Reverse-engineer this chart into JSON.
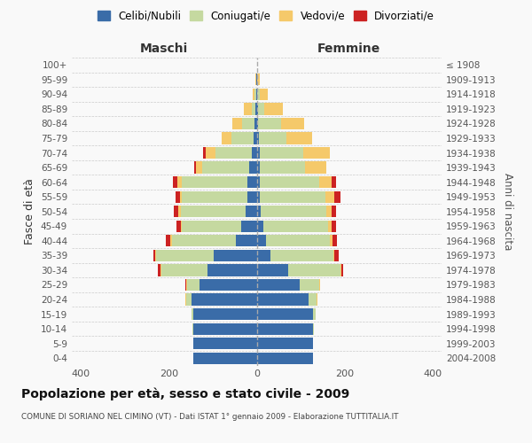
{
  "age_groups": [
    "100+",
    "95-99",
    "90-94",
    "85-89",
    "80-84",
    "75-79",
    "70-74",
    "65-69",
    "60-64",
    "55-59",
    "50-54",
    "45-49",
    "40-44",
    "35-39",
    "30-34",
    "25-29",
    "20-24",
    "15-19",
    "10-14",
    "5-9",
    "0-4"
  ],
  "birth_years": [
    "≤ 1908",
    "1909-1913",
    "1914-1918",
    "1919-1923",
    "1924-1928",
    "1929-1933",
    "1934-1938",
    "1939-1943",
    "1944-1948",
    "1949-1953",
    "1954-1958",
    "1959-1963",
    "1964-1968",
    "1969-1973",
    "1974-1978",
    "1979-1983",
    "1984-1988",
    "1989-1993",
    "1994-1998",
    "1999-2003",
    "2004-2008"
  ],
  "colors": {
    "celibi": "#3a6ca8",
    "coniugati": "#c5d9a0",
    "vedovi": "#f5c96a",
    "divorziati": "#cc2222"
  },
  "maschi": {
    "celibi": [
      0,
      1,
      2,
      3,
      5,
      8,
      12,
      18,
      22,
      22,
      25,
      35,
      48,
      98,
      112,
      130,
      148,
      145,
      145,
      145,
      145
    ],
    "coniugati": [
      0,
      1,
      3,
      8,
      28,
      50,
      82,
      105,
      148,
      148,
      148,
      135,
      145,
      130,
      105,
      28,
      12,
      3,
      2,
      0,
      0
    ],
    "vedovi": [
      0,
      1,
      5,
      18,
      22,
      22,
      22,
      15,
      10,
      5,
      5,
      3,
      3,
      2,
      2,
      2,
      2,
      0,
      0,
      0,
      0
    ],
    "divorziati": [
      0,
      0,
      0,
      0,
      0,
      0,
      5,
      5,
      10,
      10,
      10,
      10,
      10,
      5,
      5,
      3,
      0,
      0,
      0,
      0,
      0
    ]
  },
  "femmine": {
    "celibi": [
      0,
      1,
      2,
      3,
      3,
      5,
      8,
      8,
      8,
      8,
      10,
      15,
      22,
      32,
      72,
      98,
      118,
      128,
      128,
      128,
      128
    ],
    "coniugati": [
      0,
      1,
      5,
      15,
      52,
      62,
      98,
      102,
      135,
      148,
      148,
      148,
      145,
      142,
      118,
      45,
      18,
      5,
      2,
      0,
      0
    ],
    "vedovi": [
      1,
      5,
      18,
      42,
      52,
      58,
      60,
      48,
      28,
      20,
      12,
      8,
      5,
      3,
      2,
      2,
      2,
      0,
      0,
      0,
      0
    ],
    "divorziati": [
      0,
      0,
      0,
      0,
      0,
      0,
      0,
      0,
      10,
      15,
      10,
      10,
      10,
      10,
      5,
      0,
      0,
      0,
      0,
      0,
      0
    ]
  },
  "xlim": 420,
  "xticks": [
    -400,
    -200,
    0,
    200,
    400
  ],
  "title": "Popolazione per età, sesso e stato civile - 2009",
  "subtitle": "COMUNE DI SORIANO NEL CIMINO (VT) - Dati ISTAT 1° gennaio 2009 - Elaborazione TUTTITALIA.IT",
  "ylabel_left": "Fasce di età",
  "ylabel_right": "Anni di nascita",
  "legend_labels": [
    "Celibi/Nubili",
    "Coniugati/e",
    "Vedovi/e",
    "Divorziati/e"
  ],
  "bg_color": "#f9f9f9",
  "grid_color": "#cccccc",
  "maschi_label": "Maschi",
  "femmine_label": "Femmine"
}
